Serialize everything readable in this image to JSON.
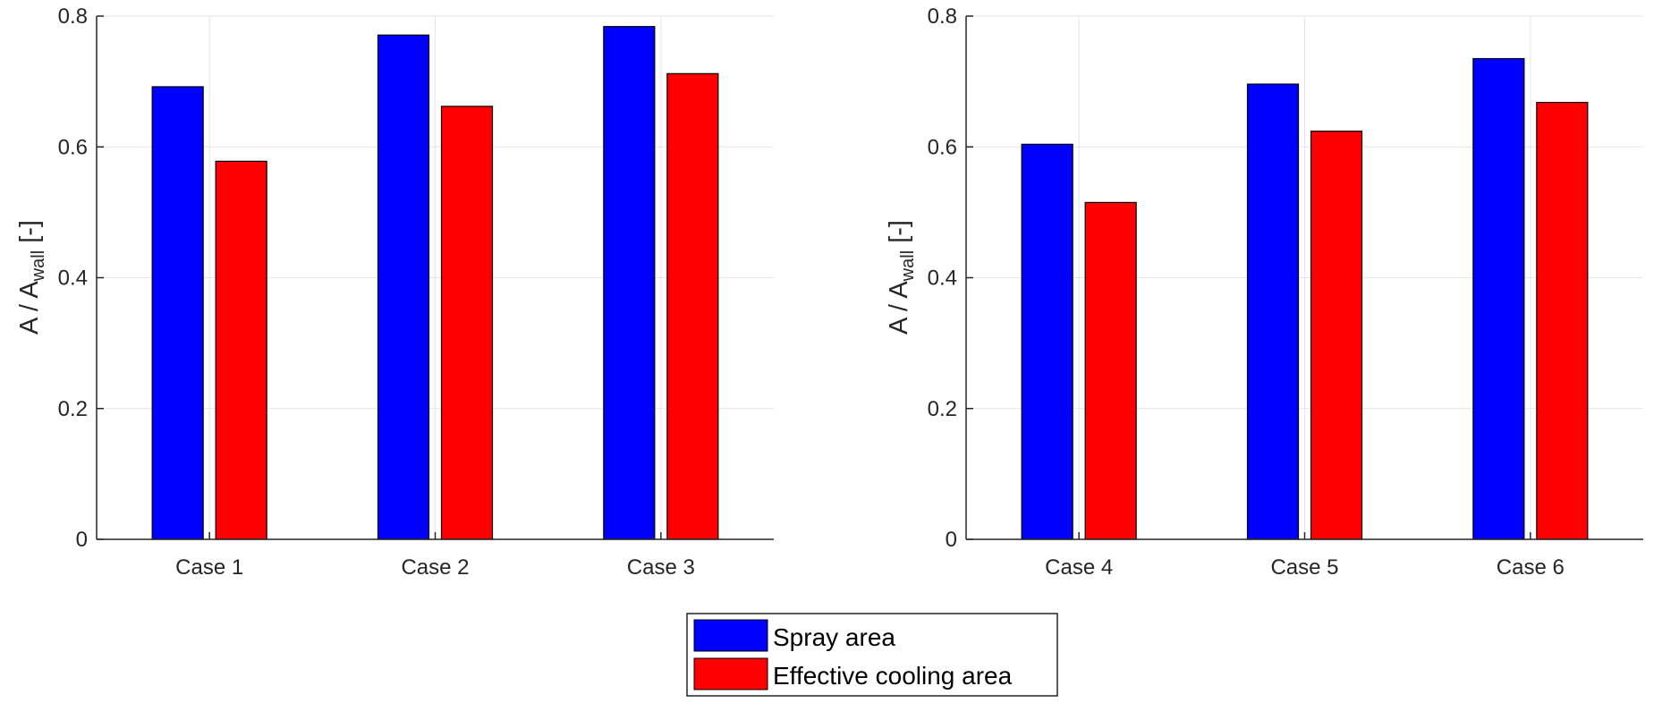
{
  "chart_data": [
    {
      "type": "bar",
      "categories": [
        "Case 1",
        "Case 2",
        "Case 3"
      ],
      "series": [
        {
          "name": "Spray area",
          "values": [
            0.692,
            0.771,
            0.784
          ]
        },
        {
          "name": "Effective cooling area",
          "values": [
            0.578,
            0.662,
            0.712
          ]
        }
      ],
      "ylabel": {
        "main": "A / A",
        "sub": "wall",
        "suffix": " [-]"
      },
      "ylim": [
        0,
        0.8
      ],
      "yticks": [
        "0",
        "0.2",
        "0.4",
        "0.6",
        "0.8"
      ],
      "grid": true
    },
    {
      "type": "bar",
      "categories": [
        "Case 4",
        "Case 5",
        "Case 6"
      ],
      "series": [
        {
          "name": "Spray area",
          "values": [
            0.604,
            0.696,
            0.735
          ]
        },
        {
          "name": "Effective cooling area",
          "values": [
            0.515,
            0.624,
            0.668
          ]
        }
      ],
      "ylabel": {
        "main": "A / A",
        "sub": "wall",
        "suffix": " [-]"
      },
      "ylim": [
        0,
        0.8
      ],
      "yticks": [
        "0",
        "0.2",
        "0.4",
        "0.6",
        "0.8"
      ],
      "grid": true
    }
  ],
  "legend": {
    "placement": "bottom-center",
    "entries": [
      "Spray area",
      "Effective cooling area"
    ]
  },
  "colors": {
    "spray": "#0000ff",
    "cooling": "#ff0000",
    "axis": "#262626",
    "grid": "#e6e6e6"
  }
}
